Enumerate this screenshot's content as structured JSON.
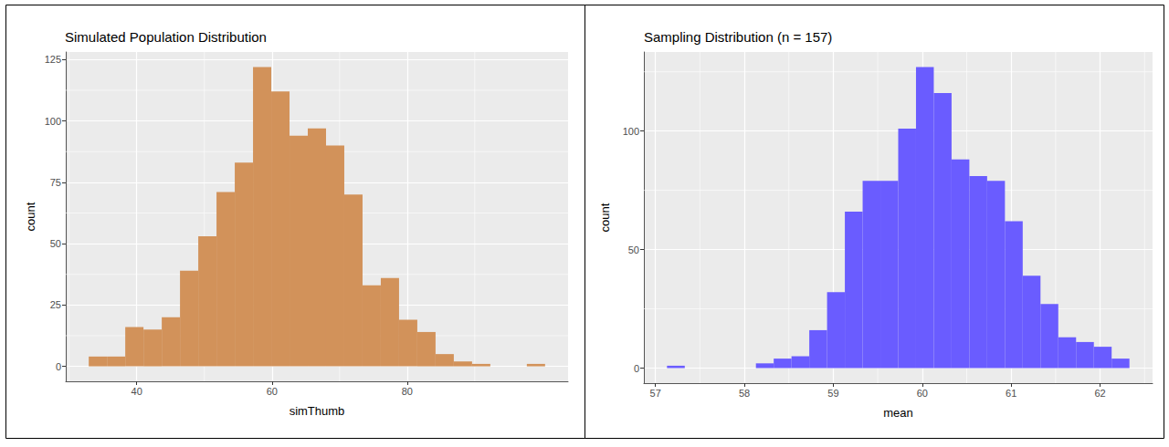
{
  "chart_data": [
    {
      "type": "histogram",
      "title": "Simulated Population Distribution",
      "x_label": "simThumb",
      "y_label": "count",
      "bins": [
        32.9,
        35.6,
        38.3,
        41.0,
        43.7,
        46.4,
        49.1,
        51.8,
        54.5,
        57.2,
        59.9,
        62.6,
        65.3,
        68.0,
        70.7,
        73.4,
        76.1,
        78.8,
        81.5,
        84.2,
        86.9,
        89.6,
        92.3,
        95.0,
        97.7,
        100.4
      ],
      "values": [
        4,
        4,
        16,
        15,
        20,
        39,
        53,
        71,
        83,
        122,
        112,
        94,
        97,
        90,
        70,
        33,
        36,
        19,
        14,
        5,
        2,
        1,
        0,
        0,
        1
      ],
      "color": "#d2925a",
      "xlim": [
        29.5,
        103.8
      ],
      "xticks": [
        40,
        60,
        80
      ],
      "ylim": [
        -6.1,
        128.1
      ],
      "yticks": [
        0,
        25,
        50,
        75,
        100,
        125
      ],
      "grid": true
    },
    {
      "type": "histogram",
      "title": "Sampling Distribution (n = 157)",
      "x_label": "mean",
      "y_label": "count",
      "bins": [
        57.13,
        57.33,
        57.53,
        57.73,
        57.93,
        58.13,
        58.33,
        58.53,
        58.73,
        58.93,
        59.13,
        59.33,
        59.53,
        59.73,
        59.93,
        60.13,
        60.33,
        60.53,
        60.73,
        60.93,
        61.13,
        61.33,
        61.53,
        61.73,
        61.93,
        62.13,
        62.33
      ],
      "values": [
        1,
        0,
        0,
        0,
        0,
        2,
        4,
        5,
        16,
        32,
        66,
        79,
        79,
        101,
        127,
        116,
        88,
        81,
        79,
        62,
        39,
        27,
        13,
        11,
        9,
        4
      ],
      "color": "#6a5cff",
      "xlim": [
        56.87,
        62.59
      ],
      "xticks": [
        57,
        58,
        59,
        60,
        61,
        62
      ],
      "ylim": [
        -6.35,
        133.35
      ],
      "yticks": [
        0,
        50,
        100
      ],
      "grid": true
    }
  ]
}
